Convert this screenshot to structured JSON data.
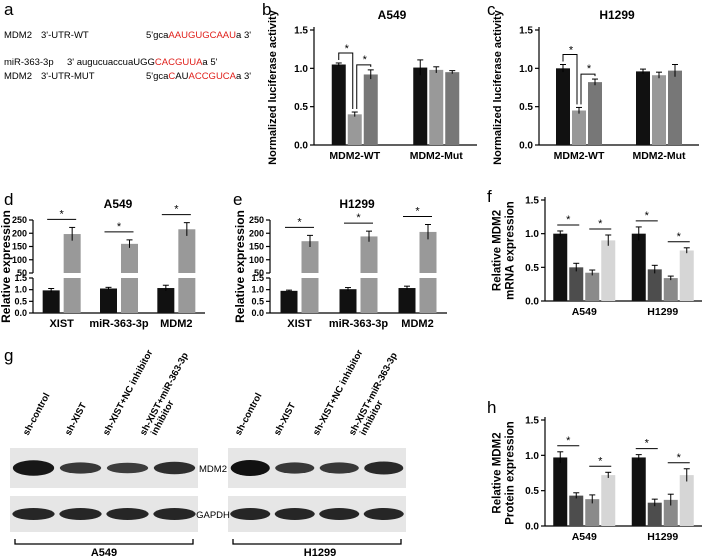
{
  "panel_labels": {
    "a": "a",
    "b": "b",
    "c": "c",
    "d": "d",
    "e": "e",
    "f": "f",
    "g": "g",
    "h": "h"
  },
  "sequences": {
    "wt": {
      "gene": "MDM2",
      "region": "3'-UTR-WT",
      "prefix": "5'gca",
      "red1": "AAU",
      "mid": "",
      "red2": "GUGCAAU",
      "suffix": "a 3'"
    },
    "mir": {
      "gene": "miR-363-3p",
      "region": "3' augucuaccua",
      "prefix": "",
      "red1": "",
      "mid": "UGG",
      "red2": "CACGUUA",
      "suffix": "a 5'"
    },
    "mut": {
      "gene": "MDM2",
      "region": "3'-UTR-MUT",
      "prefix": "5'gca",
      "red1": "C",
      "mid": "AU",
      "red2": "ACCGUCA",
      "suffix": "a 3'"
    }
  },
  "colors": {
    "black": "#111111",
    "dark_gray": "#4d4d4d",
    "gray": "#8a8a8a",
    "mid_gray": "#999999",
    "light_gray": "#d6d6d6",
    "red": "#e0201b"
  },
  "chart_data": [
    {
      "id": "b",
      "type": "bar",
      "title": "A549",
      "ylabel": "Normalized luciferase activity",
      "categories": [
        "MDM2-WT",
        "MDM2-Mut"
      ],
      "ylim": [
        0,
        1.5
      ],
      "yticks": [
        0,
        0.5,
        1.0,
        1.5
      ],
      "ytick_labels": [
        "0.0",
        "0.5",
        "1.0",
        "1.5"
      ],
      "series": [
        {
          "values": [
            1.05,
            1.01
          ],
          "errors": [
            0.02,
            0.1
          ],
          "color": "#111111"
        },
        {
          "values": [
            0.4,
            0.98
          ],
          "errors": [
            0.03,
            0.04
          ],
          "color": "#999999"
        },
        {
          "values": [
            0.92,
            0.95
          ],
          "errors": [
            0.06,
            0.02
          ],
          "color": "#777777"
        }
      ],
      "annotations": [
        "*",
        "*"
      ]
    },
    {
      "id": "c",
      "type": "bar",
      "title": "H1299",
      "ylabel": "Normalized luciferase activity",
      "categories": [
        "MDM2-WT",
        "MDM2-Mut"
      ],
      "ylim": [
        0,
        1.5
      ],
      "yticks": [
        0,
        0.5,
        1.0,
        1.5
      ],
      "ytick_labels": [
        "0.0",
        "0.5",
        "1.0",
        "1.5"
      ],
      "series": [
        {
          "values": [
            1.0,
            0.96
          ],
          "errors": [
            0.05,
            0.03
          ],
          "color": "#111111"
        },
        {
          "values": [
            0.45,
            0.91
          ],
          "errors": [
            0.04,
            0.04
          ],
          "color": "#999999"
        },
        {
          "values": [
            0.82,
            0.97
          ],
          "errors": [
            0.04,
            0.08
          ],
          "color": "#777777"
        }
      ],
      "annotations": [
        "*",
        "*"
      ]
    },
    {
      "id": "d",
      "type": "bar",
      "title": "A549",
      "ylabel": "Relative expression",
      "categories": [
        "XIST",
        "miR-363-3p",
        "MDM2"
      ],
      "broken_axis": true,
      "lower_ylim": [
        0,
        1.5
      ],
      "lower_yticks": [
        0,
        0.5,
        1.0,
        1.5
      ],
      "lower_ytick_labels": [
        "0.0",
        "0.5",
        "1.0",
        "1.5"
      ],
      "upper_ylim": [
        50,
        250
      ],
      "upper_yticks": [
        50,
        100,
        150,
        200,
        250
      ],
      "upper_ytick_labels": [
        "50",
        "100",
        "150",
        "200",
        "250"
      ],
      "series": [
        {
          "values": [
            0.97,
            1.05,
            1.07
          ],
          "errors": [
            0.08,
            0.05,
            0.12
          ],
          "color": "#111111"
        },
        {
          "values": [
            197,
            160,
            215
          ],
          "errors": [
            25,
            15,
            25
          ],
          "color": "#999999"
        }
      ],
      "annotations": [
        "*",
        "*",
        "*"
      ]
    },
    {
      "id": "e",
      "type": "bar",
      "title": "H1299",
      "ylabel": "Relative expression",
      "categories": [
        "XIST",
        "miR-363-3p",
        "MDM2"
      ],
      "broken_axis": true,
      "lower_ylim": [
        0,
        1.5
      ],
      "lower_yticks": [
        0,
        0.5,
        1.0,
        1.5
      ],
      "lower_ytick_labels": [
        "0.0",
        "0.5",
        "1.0",
        "1.5"
      ],
      "upper_ylim": [
        50,
        250
      ],
      "upper_yticks": [
        50,
        100,
        150,
        200,
        250
      ],
      "upper_ytick_labels": [
        "50",
        "100",
        "150",
        "200",
        "250"
      ],
      "series": [
        {
          "values": [
            0.95,
            1.02,
            1.07
          ],
          "errors": [
            0.03,
            0.07,
            0.08
          ],
          "color": "#111111"
        },
        {
          "values": [
            170,
            188,
            205
          ],
          "errors": [
            22,
            20,
            28
          ],
          "color": "#999999"
        }
      ],
      "annotations": [
        "*",
        "*",
        "*"
      ]
    },
    {
      "id": "f",
      "type": "bar",
      "title": "",
      "ylabel": "Relative MDM2 mRNA expression",
      "ylabel_lines": [
        "Relative MDM2",
        "mRNA expression"
      ],
      "categories": [
        "A549",
        "H1299"
      ],
      "ylim": [
        0,
        1.5
      ],
      "yticks": [
        0,
        0.5,
        1.0,
        1.5
      ],
      "ytick_labels": [
        "0.0",
        "0.5",
        "1.0",
        "1.5"
      ],
      "series": [
        {
          "values": [
            1.0,
            1.0
          ],
          "errors": [
            0.04,
            0.1
          ],
          "color": "#111111"
        },
        {
          "values": [
            0.5,
            0.47
          ],
          "errors": [
            0.06,
            0.06
          ],
          "color": "#4d4d4d"
        },
        {
          "values": [
            0.42,
            0.34
          ],
          "errors": [
            0.04,
            0.03
          ],
          "color": "#8a8a8a"
        },
        {
          "values": [
            0.9,
            0.75
          ],
          "errors": [
            0.08,
            0.04
          ],
          "color": "#d6d6d6"
        }
      ],
      "annotations": [
        "*",
        "*",
        "*",
        "*"
      ]
    },
    {
      "id": "h",
      "type": "bar",
      "title": "",
      "ylabel": "Relative MDM2 Protein expression",
      "ylabel_lines": [
        "Relative MDM2",
        "Protein  expression"
      ],
      "categories": [
        "A549",
        "H1299"
      ],
      "ylim": [
        0,
        1.5
      ],
      "yticks": [
        0,
        0.5,
        1.0,
        1.5
      ],
      "ytick_labels": [
        "0.0",
        "0.5",
        "1.0",
        "1.5"
      ],
      "series": [
        {
          "values": [
            0.97,
            0.97
          ],
          "errors": [
            0.08,
            0.04
          ],
          "color": "#111111"
        },
        {
          "values": [
            0.43,
            0.33
          ],
          "errors": [
            0.04,
            0.05
          ],
          "color": "#4d4d4d"
        },
        {
          "values": [
            0.38,
            0.37
          ],
          "errors": [
            0.06,
            0.08
          ],
          "color": "#8a8a8a"
        },
        {
          "values": [
            0.72,
            0.72
          ],
          "errors": [
            0.04,
            0.09
          ],
          "color": "#d6d6d6"
        }
      ],
      "annotations": [
        "*",
        "*",
        "*",
        "*"
      ]
    }
  ],
  "western_blot": {
    "lane_labels": [
      "sh-control",
      "sh-XIST",
      "sh-XIST+NC inhibitor",
      "sh-XIST+miR-363-3p inhibitor"
    ],
    "lane_label_lines": [
      [
        "sh-control"
      ],
      [
        "sh-XIST"
      ],
      [
        "sh-XIST+NC inhibitor"
      ],
      [
        "sh-XIST+miR-363-3p",
        "inhibitor"
      ]
    ],
    "bands": [
      "MDM2",
      "GAPDH"
    ],
    "groups": [
      "A549",
      "H1299"
    ]
  }
}
